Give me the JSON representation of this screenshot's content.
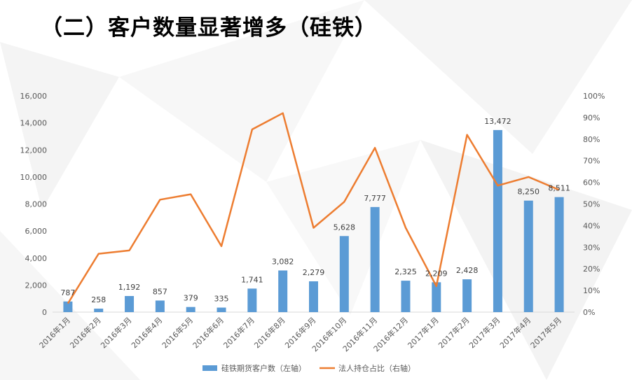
{
  "page": {
    "title": "（二）客户数量显著增多（硅铁）"
  },
  "chart_data": {
    "type": "bar+line",
    "categories": [
      "2016年1月",
      "2016年2月",
      "2016年3月",
      "2016年4月",
      "2016年5月",
      "2016年6月",
      "2016年7月",
      "2016年8月",
      "2016年9月",
      "2016年10月",
      "2016年11月",
      "2016年12月",
      "2017年1月",
      "2017年2月",
      "2017年3月",
      "2017年4月",
      "2017年5月"
    ],
    "series": [
      {
        "name": "硅铁期货客户数（左轴）",
        "kind": "bar",
        "axis": "left",
        "color": "#5B9BD5",
        "values": [
          787,
          258,
          1192,
          857,
          379,
          335,
          1741,
          3082,
          2279,
          5628,
          7777,
          2325,
          2209,
          2428,
          13472,
          8250,
          8511
        ],
        "labels": [
          "787",
          "258",
          "1,192",
          "857",
          "379",
          "335",
          "1,741",
          "3,082",
          "2,279",
          "5,628",
          "7,777",
          "2,325",
          "2,209",
          "2,428",
          "13,472",
          "8,250",
          "8,511"
        ]
      },
      {
        "name": "法人持仓占比（右轴）",
        "kind": "line",
        "axis": "right",
        "color": "#ED7D31",
        "values": [
          0.04,
          0.27,
          0.285,
          0.52,
          0.545,
          0.305,
          0.845,
          0.92,
          0.39,
          0.51,
          0.76,
          0.39,
          0.12,
          0.82,
          0.585,
          0.625,
          0.565
        ]
      }
    ],
    "y_left": {
      "min": 0,
      "max": 16000,
      "ticks": [
        "0",
        "2,000",
        "4,000",
        "6,000",
        "8,000",
        "10,000",
        "12,000",
        "14,000",
        "16,000"
      ]
    },
    "y_right": {
      "min": 0,
      "max": 1,
      "ticks": [
        "0%",
        "10%",
        "20%",
        "30%",
        "40%",
        "50%",
        "60%",
        "70%",
        "80%",
        "90%",
        "100%"
      ]
    },
    "legend_position": "bottom"
  }
}
